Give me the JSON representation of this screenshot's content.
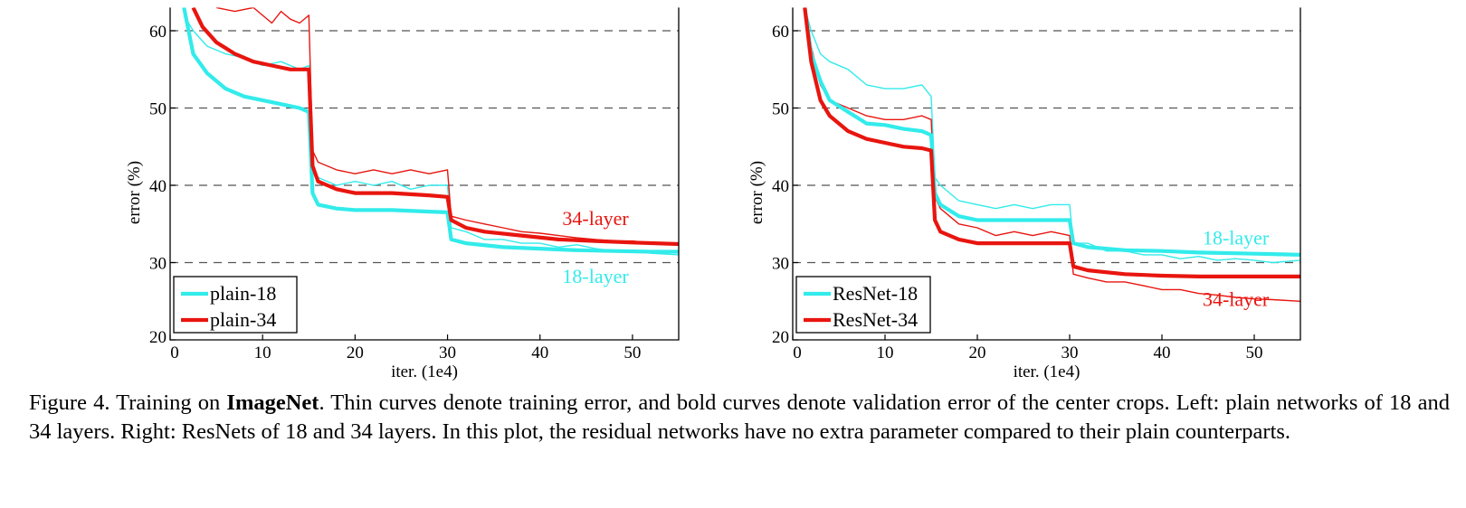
{
  "caption": {
    "label": "Figure 4.",
    "pre": " Training on ",
    "bold": "ImageNet",
    "post": ". Thin curves denote training error, and bold curves denote validation error of the center crops. Left: plain networks of 18 and 34 layers. Right: ResNets of 18 and 34 layers. In this plot, the residual networks have no extra parameter compared to their plain counterparts."
  },
  "colors": {
    "cyan": "#33ebeb",
    "red": "#e8150f"
  },
  "chart_data": [
    {
      "type": "line",
      "panel": "left",
      "xlabel": "iter. (1e4)",
      "ylabel": "error (%)",
      "xlim": [
        0,
        55
      ],
      "ylim": [
        20,
        63
      ],
      "xticks": [
        0,
        10,
        20,
        30,
        40,
        50
      ],
      "yticks": [
        20,
        30,
        40,
        50,
        60
      ],
      "grid": "dashed horizontal at 30, 40, 50, 60",
      "legend": {
        "position": "bottom-left",
        "entries": [
          "plain-18",
          "plain-34"
        ]
      },
      "annotations": [
        {
          "text": "34-layer",
          "color": "red",
          "x": 46,
          "y": 35.8
        },
        {
          "text": "18-layer",
          "color": "cyan",
          "x": 46,
          "y": 28.3
        }
      ],
      "series": [
        {
          "name": "plain-18",
          "kind": "validation",
          "color": "cyan",
          "x": [
            1.5,
            2.5,
            4,
            6,
            8,
            10,
            12,
            14,
            15,
            15.4,
            16,
            18,
            20,
            24,
            28,
            30,
            30.4,
            32,
            36,
            40,
            44,
            48,
            52,
            55
          ],
          "y": [
            63,
            57,
            54.5,
            52.5,
            51.5,
            51,
            50.5,
            50,
            49.5,
            39,
            37.5,
            37,
            36.8,
            36.8,
            36.6,
            36.5,
            33,
            32.5,
            32,
            31.8,
            31.6,
            31.5,
            31.4,
            31.4
          ]
        },
        {
          "name": "plain-34",
          "kind": "validation",
          "color": "red",
          "x": [
            2.5,
            3.5,
            5,
            7,
            9,
            11,
            13,
            15,
            15.4,
            16,
            17,
            18,
            20,
            24,
            28,
            30,
            30.4,
            32,
            34,
            38,
            42,
            46,
            50,
            55
          ],
          "y": [
            63,
            60.5,
            58.5,
            57,
            56,
            55.5,
            55,
            55,
            42.5,
            40.5,
            40,
            39.5,
            39,
            39,
            38.7,
            38.5,
            35.5,
            34.5,
            34,
            33.5,
            33,
            32.8,
            32.6,
            32.4
          ]
        },
        {
          "name": "plain-18 train",
          "kind": "training",
          "color": "cyan",
          "x": [
            1.5,
            2.5,
            4,
            6,
            8,
            10,
            12,
            14,
            15,
            15.4,
            16,
            18,
            20,
            22,
            24,
            26,
            28,
            30,
            30.4,
            32,
            34,
            36,
            38,
            40,
            42,
            44,
            46,
            48,
            50,
            52,
            55
          ],
          "y": [
            62,
            60,
            58,
            57,
            56.5,
            55.5,
            56,
            55,
            55.5,
            42,
            41,
            40,
            40.5,
            40,
            40.5,
            39.5,
            40,
            40,
            34.5,
            34,
            33,
            33,
            32.5,
            32.5,
            32,
            32.3,
            31.8,
            31.5,
            31.6,
            31.2,
            31
          ]
        },
        {
          "name": "plain-34 train",
          "kind": "training",
          "color": "red",
          "x": [
            5,
            7,
            9,
            11,
            12,
            13,
            14,
            15,
            15.4,
            16,
            17,
            18,
            20,
            22,
            24,
            26,
            28,
            30,
            30.4,
            32,
            34,
            36,
            38,
            40,
            42,
            44,
            46,
            48,
            50,
            52,
            55
          ],
          "y": [
            63,
            62.5,
            63,
            61,
            62.5,
            61.5,
            61,
            62,
            44.5,
            43,
            42.5,
            42,
            41.5,
            42,
            41.5,
            42,
            41.5,
            42,
            36,
            35.5,
            35,
            34.5,
            34,
            33.8,
            33.5,
            33.2,
            33,
            32.8,
            32.8,
            32.5,
            32.3
          ]
        }
      ]
    },
    {
      "type": "line",
      "panel": "right",
      "xlabel": "iter. (1e4)",
      "ylabel": "error (%)",
      "xlim": [
        0,
        55
      ],
      "ylim": [
        20,
        63
      ],
      "xticks": [
        0,
        10,
        20,
        30,
        40,
        50
      ],
      "yticks": [
        20,
        30,
        40,
        50,
        60
      ],
      "grid": "dashed horizontal at 30, 40, 50, 60",
      "legend": {
        "position": "bottom-left",
        "entries": [
          "ResNet-18",
          "ResNet-34"
        ]
      },
      "annotations": [
        {
          "text": "18-layer",
          "color": "cyan",
          "x": 48,
          "y": 33.3
        },
        {
          "text": "34-layer",
          "color": "red",
          "x": 48,
          "y": 25.3
        }
      ],
      "series": [
        {
          "name": "ResNet-18",
          "kind": "validation",
          "color": "cyan",
          "x": [
            1.3,
            2,
            3,
            4,
            6,
            8,
            10,
            12,
            14,
            15,
            15.4,
            16,
            18,
            20,
            24,
            28,
            30,
            30.4,
            32,
            36,
            40,
            44,
            48,
            52,
            55
          ],
          "y": [
            63,
            57,
            53.5,
            51,
            49.5,
            48,
            47.8,
            47.3,
            47,
            46.5,
            39,
            37.5,
            36,
            35.5,
            35.5,
            35.5,
            35.5,
            32.5,
            32,
            31.6,
            31.5,
            31.3,
            31.2,
            31.1,
            31
          ]
        },
        {
          "name": "ResNet-34",
          "kind": "validation",
          "color": "red",
          "x": [
            1.3,
            2,
            3,
            4,
            6,
            8,
            10,
            12,
            14,
            15,
            15.4,
            16,
            18,
            20,
            24,
            28,
            30,
            30.4,
            32,
            36,
            40,
            44,
            48,
            52,
            55
          ],
          "y": [
            63,
            56,
            51,
            49,
            47,
            46,
            45.5,
            45,
            44.8,
            44.5,
            35.5,
            34,
            33,
            32.5,
            32.5,
            32.5,
            32.5,
            29.5,
            29,
            28.5,
            28.3,
            28.2,
            28.2,
            28.2,
            28.2
          ]
        },
        {
          "name": "ResNet-18 train",
          "kind": "training",
          "color": "cyan",
          "x": [
            1.3,
            2,
            3,
            4,
            6,
            8,
            10,
            12,
            14,
            15,
            15.4,
            16,
            18,
            20,
            22,
            24,
            26,
            28,
            30,
            30.4,
            32,
            34,
            36,
            38,
            40,
            42,
            44,
            46,
            48,
            50,
            52,
            55
          ],
          "y": [
            63,
            60,
            57,
            56,
            55,
            53,
            52.5,
            52.5,
            53,
            51.5,
            41,
            40,
            38,
            37.5,
            37,
            37.5,
            37,
            37.5,
            37.5,
            32.5,
            32.5,
            31.5,
            31.5,
            31,
            31,
            30.5,
            30.8,
            30.3,
            30.5,
            30.3,
            30,
            30.3
          ]
        },
        {
          "name": "ResNet-34 train",
          "kind": "training",
          "color": "red",
          "x": [
            1.3,
            2,
            3,
            4,
            6,
            8,
            10,
            12,
            14,
            15,
            15.4,
            16,
            18,
            20,
            22,
            24,
            26,
            28,
            30,
            30.4,
            32,
            34,
            36,
            38,
            40,
            42,
            44,
            46,
            48,
            50,
            52,
            55
          ],
          "y": [
            63,
            58,
            53,
            51,
            50,
            49,
            48.5,
            48.5,
            49,
            48.5,
            38.5,
            37,
            35,
            34.5,
            33.5,
            34,
            33.5,
            34,
            33.5,
            28.5,
            28,
            27.5,
            27.5,
            27,
            26.5,
            26.5,
            26,
            25.8,
            25.5,
            25.3,
            25.2,
            25
          ]
        }
      ]
    }
  ]
}
